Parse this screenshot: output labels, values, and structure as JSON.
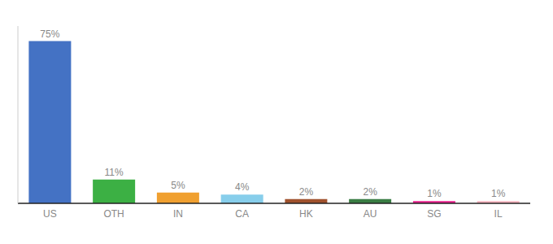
{
  "chart_data": {
    "type": "bar",
    "categories": [
      "US",
      "OTH",
      "IN",
      "CA",
      "HK",
      "AU",
      "SG",
      "IL"
    ],
    "values": [
      75,
      11,
      5,
      4,
      2,
      2,
      1,
      1
    ],
    "value_labels": [
      "75%",
      "11%",
      "5%",
      "4%",
      "2%",
      "2%",
      "1%",
      "1%"
    ],
    "colors": [
      "#4472C4",
      "#3CB044",
      "#F0A030",
      "#87CEEB",
      "#A0522D",
      "#3A7D44",
      "#E91E8C",
      "#FFB6C1"
    ],
    "ylim": [
      0,
      82
    ],
    "data_labels": true,
    "tick_labels": "x",
    "grid": false
  }
}
